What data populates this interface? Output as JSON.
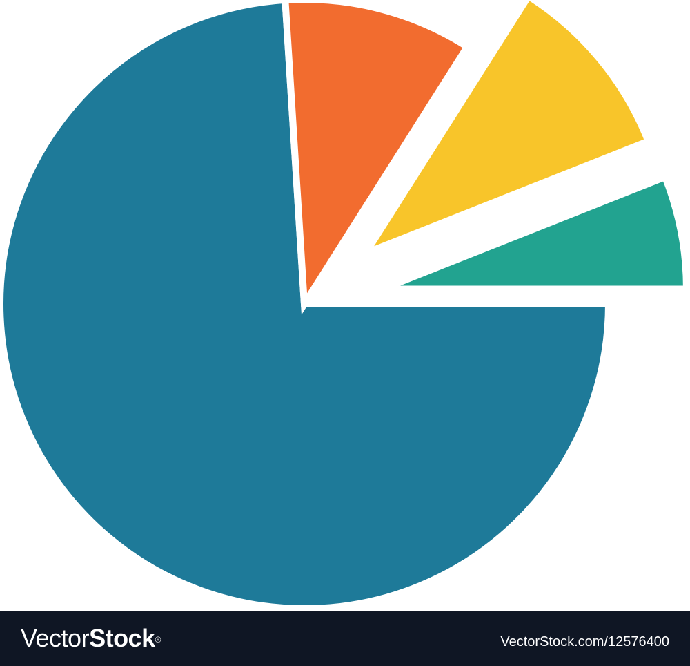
{
  "chart_data": {
    "type": "pie",
    "slices": [
      {
        "value": 74,
        "color": "#1e7a99"
      },
      {
        "value": 10,
        "color": "#f26c2f"
      },
      {
        "value": 10,
        "color": "#f8c52a"
      },
      {
        "value": 6,
        "color": "#22a390"
      }
    ],
    "start_direction": "right",
    "direction": "clockwise",
    "exploded": [
      false,
      false,
      true,
      true
    ],
    "title": "",
    "legend": "none"
  },
  "watermark": {
    "brand_light": "Vector",
    "brand_bold": "Stock",
    "registered": "®",
    "image_id": "VectorStock.com/12576400"
  }
}
